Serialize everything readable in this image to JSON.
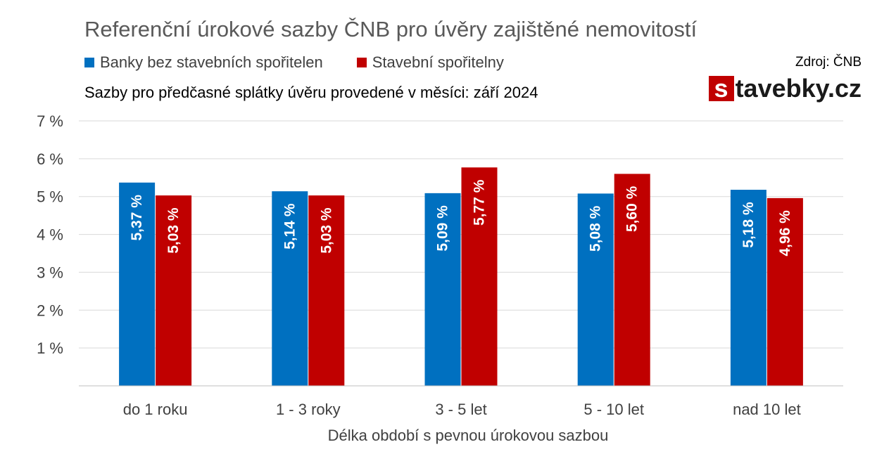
{
  "header": {
    "title": "Referenční úrokové sazby ČNB pro úvěry zajištěné nemovitostí",
    "subtitle": "Sazby pro předčasné splátky úvěru provedené v měsíci: září 2024",
    "source": "Zdroj: ČNB",
    "logo_letter": "s",
    "logo_rest": "tavebky.cz"
  },
  "colors": {
    "series_banks": "#0070c0",
    "series_savings": "#c00000",
    "gridline": "#d9d9d9",
    "axis": "#bfbfbf"
  },
  "chart_data": {
    "type": "bar",
    "title": "Referenční úrokové sazby ČNB pro úvěry zajištěné nemovitostí",
    "xlabel": "Délka období s pevnou úrokovou sazbou",
    "ylabel": "",
    "ylim": [
      0,
      7
    ],
    "y_ticks": [
      1,
      2,
      3,
      4,
      5,
      6,
      7
    ],
    "y_tick_labels": [
      "1 %",
      "2 %",
      "3 %",
      "4 %",
      "5 %",
      "6 %",
      "7 %"
    ],
    "grid": true,
    "legend_position": "top-left",
    "categories": [
      "do 1 roku",
      "1 - 3 roky",
      "3 - 5 let",
      "5 - 10 let",
      "nad 10 let"
    ],
    "series": [
      {
        "name": "Banky bez stavebních spořitelen",
        "values": [
          5.37,
          5.14,
          5.09,
          5.08,
          5.18
        ],
        "labels": [
          "5,37 %",
          "5,14 %",
          "5,09 %",
          "5,08 %",
          "5,18 %"
        ]
      },
      {
        "name": "Stavební spořitelny",
        "values": [
          5.03,
          5.03,
          5.77,
          5.6,
          4.96
        ],
        "labels": [
          "5,03 %",
          "5,03 %",
          "5,77 %",
          "5,60 %",
          "4,96 %"
        ]
      }
    ]
  }
}
